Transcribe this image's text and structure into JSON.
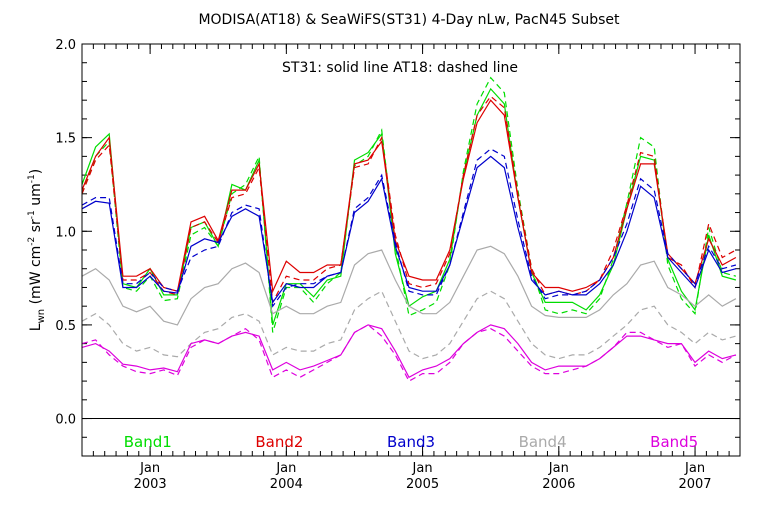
{
  "chart_data": {
    "type": "line",
    "title": "MODISA(AT18) & SeaWiFS(ST31) 4-Day nLw, PacN45 Subset",
    "annotation": "ST31: solid line   AT18: dashed line",
    "ylabel": "Lwn (mW cm-2 sr-1 um-1)",
    "ylabel_parts": {
      "main": "L",
      "sub": "wn",
      "units": [
        "(mW cm",
        "-2",
        " sr",
        "-1",
        " um",
        "-1",
        ")"
      ]
    },
    "xlim": [
      2002.5,
      2007.33
    ],
    "ylim": [
      -0.2,
      2.0
    ],
    "grid": false,
    "zero_line": 0.0,
    "yticks": [
      0.0,
      0.5,
      1.0,
      1.5,
      2.0
    ],
    "ytick_labels": [
      "0.0",
      "0.5",
      "1.0",
      "1.5",
      "2.0"
    ],
    "xticks": [
      {
        "x": 2003.0,
        "top": "Jan",
        "bottom": "2003"
      },
      {
        "x": 2004.0,
        "top": "Jan",
        "bottom": "2004"
      },
      {
        "x": 2005.0,
        "top": "Jan",
        "bottom": "2005"
      },
      {
        "x": 2006.0,
        "top": "Jan",
        "bottom": "2006"
      },
      {
        "x": 2007.0,
        "top": "Jan",
        "bottom": "2007"
      }
    ],
    "legend": [
      {
        "label": "Band1",
        "color": "#00dd00"
      },
      {
        "label": "Band2",
        "color": "#dd0000"
      },
      {
        "label": "Band3",
        "color": "#0000cc"
      },
      {
        "label": "Band4",
        "color": "#aaaaaa"
      },
      {
        "label": "Band5",
        "color": "#dd00dd"
      }
    ],
    "x": [
      2002.5,
      2002.6,
      2002.7,
      2002.8,
      2002.9,
      2003.0,
      2003.1,
      2003.2,
      2003.3,
      2003.4,
      2003.5,
      2003.6,
      2003.7,
      2003.8,
      2003.9,
      2004.0,
      2004.1,
      2004.2,
      2004.3,
      2004.4,
      2004.5,
      2004.6,
      2004.7,
      2004.8,
      2004.9,
      2005.0,
      2005.1,
      2005.2,
      2005.3,
      2005.4,
      2005.5,
      2005.6,
      2005.7,
      2005.8,
      2005.9,
      2006.0,
      2006.1,
      2006.2,
      2006.3,
      2006.4,
      2006.5,
      2006.6,
      2006.7,
      2006.8,
      2006.9,
      2007.0,
      2007.1,
      2007.2,
      2007.3
    ],
    "series": [
      {
        "sensor": "ST31",
        "band": "Band1",
        "color": "#00dd00",
        "dashed": false,
        "values": [
          1.25,
          1.45,
          1.52,
          0.72,
          0.7,
          0.8,
          0.66,
          0.66,
          1.02,
          1.05,
          0.92,
          1.25,
          1.22,
          1.38,
          0.5,
          0.72,
          0.72,
          0.65,
          0.74,
          0.76,
          1.38,
          1.42,
          1.52,
          0.88,
          0.6,
          0.65,
          0.68,
          0.85,
          1.3,
          1.62,
          1.76,
          1.68,
          1.18,
          0.78,
          0.62,
          0.62,
          0.62,
          0.58,
          0.66,
          0.82,
          1.12,
          1.4,
          1.38,
          0.85,
          0.68,
          0.58,
          0.98,
          0.76,
          0.74
        ]
      },
      {
        "sensor": "AT18",
        "band": "Band1",
        "color": "#00dd00",
        "dashed": true,
        "values": [
          1.2,
          1.4,
          1.48,
          0.7,
          0.68,
          0.76,
          0.63,
          0.64,
          0.98,
          1.02,
          0.92,
          1.2,
          1.25,
          1.4,
          0.46,
          0.7,
          0.7,
          0.62,
          0.72,
          0.78,
          1.35,
          1.4,
          1.54,
          0.92,
          0.55,
          0.58,
          0.62,
          0.82,
          1.32,
          1.68,
          1.82,
          1.74,
          1.22,
          0.8,
          0.58,
          0.56,
          0.58,
          0.56,
          0.64,
          0.85,
          1.15,
          1.5,
          1.45,
          0.82,
          0.64,
          0.56,
          1.02,
          0.78,
          0.76
        ]
      },
      {
        "sensor": "ST31",
        "band": "Band2",
        "color": "#dd0000",
        "dashed": false,
        "values": [
          1.22,
          1.4,
          1.5,
          0.76,
          0.76,
          0.8,
          0.7,
          0.68,
          1.05,
          1.08,
          0.95,
          1.22,
          1.22,
          1.36,
          0.68,
          0.84,
          0.78,
          0.78,
          0.82,
          0.82,
          1.36,
          1.38,
          1.48,
          0.95,
          0.76,
          0.74,
          0.74,
          0.9,
          1.28,
          1.58,
          1.7,
          1.62,
          1.18,
          0.78,
          0.7,
          0.7,
          0.68,
          0.7,
          0.74,
          0.86,
          1.12,
          1.36,
          1.36,
          0.88,
          0.8,
          0.72,
          0.96,
          0.82,
          0.86
        ]
      },
      {
        "sensor": "AT18",
        "band": "Band2",
        "color": "#dd0000",
        "dashed": true,
        "values": [
          1.2,
          1.38,
          1.46,
          0.74,
          0.74,
          0.78,
          0.68,
          0.66,
          1.02,
          1.05,
          0.94,
          1.18,
          1.2,
          1.34,
          0.62,
          0.76,
          0.74,
          0.74,
          0.8,
          0.82,
          1.34,
          1.36,
          1.5,
          0.98,
          0.72,
          0.7,
          0.72,
          0.88,
          1.3,
          1.62,
          1.72,
          1.66,
          1.2,
          0.8,
          0.66,
          0.68,
          0.66,
          0.68,
          0.74,
          0.9,
          1.14,
          1.42,
          1.4,
          0.86,
          0.82,
          0.7,
          1.04,
          0.86,
          0.9
        ]
      },
      {
        "sensor": "ST31",
        "band": "Band3",
        "color": "#0000cc",
        "dashed": false,
        "values": [
          1.12,
          1.16,
          1.15,
          0.7,
          0.7,
          0.76,
          0.68,
          0.67,
          0.92,
          0.96,
          0.94,
          1.08,
          1.12,
          1.08,
          0.62,
          0.72,
          0.7,
          0.7,
          0.76,
          0.78,
          1.1,
          1.16,
          1.28,
          0.92,
          0.7,
          0.68,
          0.68,
          0.82,
          1.08,
          1.34,
          1.4,
          1.34,
          1.02,
          0.74,
          0.66,
          0.68,
          0.66,
          0.66,
          0.72,
          0.82,
          1.0,
          1.24,
          1.18,
          0.86,
          0.78,
          0.7,
          0.9,
          0.78,
          0.8
        ]
      },
      {
        "sensor": "AT18",
        "band": "Band3",
        "color": "#0000cc",
        "dashed": true,
        "values": [
          1.14,
          1.18,
          1.18,
          0.72,
          0.72,
          0.78,
          0.7,
          0.68,
          0.86,
          0.9,
          0.92,
          1.1,
          1.14,
          1.12,
          0.6,
          0.7,
          0.72,
          0.72,
          0.76,
          0.78,
          1.12,
          1.18,
          1.3,
          0.94,
          0.68,
          0.66,
          0.66,
          0.82,
          1.1,
          1.38,
          1.44,
          1.4,
          1.06,
          0.76,
          0.64,
          0.66,
          0.66,
          0.68,
          0.74,
          0.86,
          1.04,
          1.28,
          1.22,
          0.88,
          0.8,
          0.72,
          0.92,
          0.8,
          0.82
        ]
      },
      {
        "sensor": "ST31",
        "band": "Band4",
        "color": "#aaaaaa",
        "dashed": false,
        "values": [
          0.76,
          0.8,
          0.74,
          0.6,
          0.57,
          0.6,
          0.52,
          0.5,
          0.64,
          0.7,
          0.72,
          0.8,
          0.83,
          0.78,
          0.56,
          0.6,
          0.56,
          0.56,
          0.6,
          0.62,
          0.82,
          0.88,
          0.9,
          0.74,
          0.6,
          0.56,
          0.56,
          0.62,
          0.76,
          0.9,
          0.92,
          0.88,
          0.76,
          0.6,
          0.55,
          0.54,
          0.54,
          0.54,
          0.58,
          0.66,
          0.72,
          0.82,
          0.84,
          0.7,
          0.66,
          0.6,
          0.66,
          0.6,
          0.64
        ]
      },
      {
        "sensor": "AT18",
        "band": "Band4",
        "color": "#aaaaaa",
        "dashed": true,
        "values": [
          0.52,
          0.56,
          0.5,
          0.4,
          0.36,
          0.38,
          0.34,
          0.33,
          0.4,
          0.46,
          0.48,
          0.54,
          0.56,
          0.52,
          0.34,
          0.38,
          0.36,
          0.36,
          0.4,
          0.42,
          0.58,
          0.64,
          0.68,
          0.52,
          0.36,
          0.32,
          0.34,
          0.4,
          0.52,
          0.64,
          0.68,
          0.64,
          0.52,
          0.4,
          0.34,
          0.32,
          0.34,
          0.34,
          0.38,
          0.44,
          0.5,
          0.58,
          0.6,
          0.5,
          0.46,
          0.4,
          0.46,
          0.42,
          0.44
        ]
      },
      {
        "sensor": "ST31",
        "band": "Band5",
        "color": "#dd00dd",
        "dashed": false,
        "values": [
          0.38,
          0.4,
          0.36,
          0.29,
          0.28,
          0.26,
          0.27,
          0.25,
          0.4,
          0.42,
          0.4,
          0.44,
          0.46,
          0.44,
          0.26,
          0.3,
          0.26,
          0.28,
          0.31,
          0.34,
          0.46,
          0.5,
          0.48,
          0.36,
          0.22,
          0.26,
          0.28,
          0.32,
          0.4,
          0.46,
          0.5,
          0.48,
          0.4,
          0.3,
          0.26,
          0.28,
          0.28,
          0.28,
          0.32,
          0.38,
          0.44,
          0.44,
          0.42,
          0.4,
          0.4,
          0.3,
          0.36,
          0.32,
          0.34
        ]
      },
      {
        "sensor": "AT18",
        "band": "Band5",
        "color": "#dd00dd",
        "dashed": true,
        "values": [
          0.4,
          0.42,
          0.34,
          0.28,
          0.25,
          0.24,
          0.26,
          0.23,
          0.38,
          0.42,
          0.4,
          0.44,
          0.48,
          0.42,
          0.22,
          0.26,
          0.22,
          0.26,
          0.3,
          0.34,
          0.46,
          0.5,
          0.44,
          0.34,
          0.2,
          0.24,
          0.24,
          0.3,
          0.4,
          0.46,
          0.48,
          0.44,
          0.36,
          0.28,
          0.24,
          0.24,
          0.26,
          0.28,
          0.32,
          0.38,
          0.46,
          0.46,
          0.42,
          0.38,
          0.4,
          0.28,
          0.34,
          0.3,
          0.34
        ]
      }
    ]
  }
}
